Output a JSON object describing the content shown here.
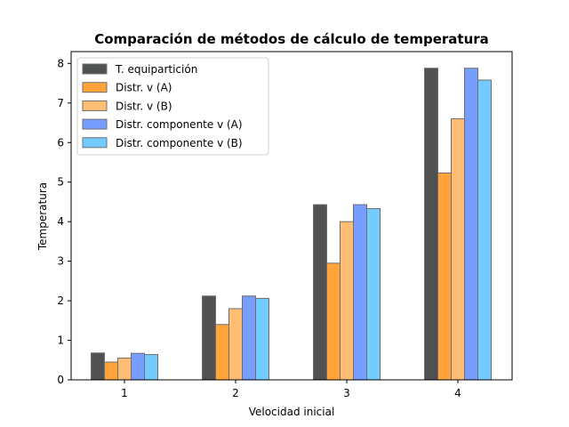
{
  "chart_data": {
    "type": "bar",
    "title": "Comparación de métodos de cálculo de temperatura",
    "xlabel": "Velocidad inicial",
    "ylabel": "Temperatura",
    "categories": [
      "1",
      "2",
      "3",
      "4"
    ],
    "ylim": [
      0,
      8.3
    ],
    "yticks": [
      0,
      1,
      2,
      3,
      4,
      5,
      6,
      7,
      8
    ],
    "grid": false,
    "legend_position": "top-left",
    "series": [
      {
        "name": "T. equipartición",
        "color": "#4f5152",
        "values": [
          0.68,
          2.12,
          4.43,
          7.88
        ]
      },
      {
        "name": "Distr. v (A)",
        "color": "#ffa33a",
        "values": [
          0.45,
          1.4,
          2.95,
          5.23
        ]
      },
      {
        "name": "Distr. v (B)",
        "color": "#ffbe74",
        "values": [
          0.55,
          1.8,
          4.0,
          6.6
        ]
      },
      {
        "name": "Distr. componente v (A)",
        "color": "#779eff",
        "values": [
          0.67,
          2.12,
          4.43,
          7.88
        ]
      },
      {
        "name": "Distr. componente v (B)",
        "color": "#74cbff",
        "values": [
          0.64,
          2.06,
          4.33,
          7.58
        ]
      }
    ]
  }
}
